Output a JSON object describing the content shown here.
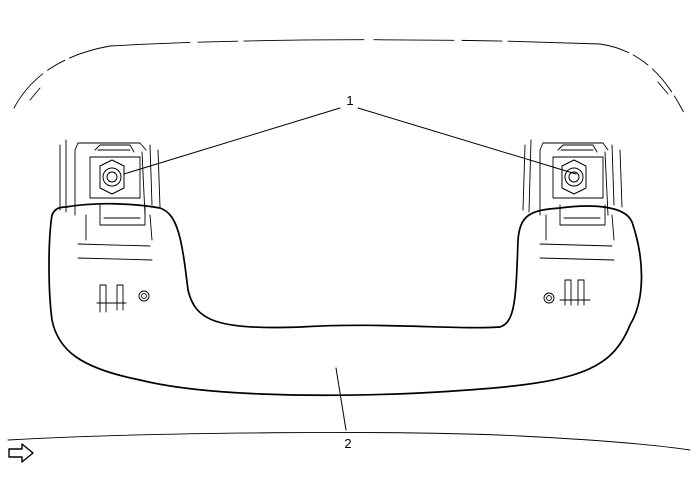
{
  "callouts": [
    {
      "id": "1"
    },
    {
      "id": "2"
    }
  ],
  "colors": {
    "line": "#000000",
    "background": "#ffffff"
  }
}
